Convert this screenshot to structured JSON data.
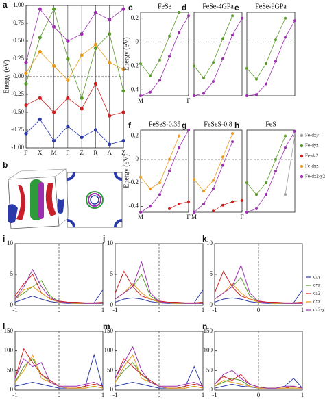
{
  "chart_data": [
    {
      "panel": "a",
      "type": "line",
      "ylabel": "Energy (eV)",
      "markers": true,
      "zero_line": "y",
      "xgrid": true,
      "categories": [
        "Γ",
        "X",
        "M",
        "Γ",
        "Z",
        "R",
        "A",
        "Z"
      ],
      "ylim": [
        -1,
        1
      ],
      "yticks": [
        {
          "value": -1,
          "label": "-1.00"
        },
        {
          "value": -0.75,
          "label": "-0.75"
        },
        {
          "value": -0.5,
          "label": "-0.50"
        },
        {
          "value": -0.25,
          "label": "-0.25"
        },
        {
          "value": 0,
          "label": "0.00"
        },
        {
          "value": 0.25,
          "label": "0.25"
        },
        {
          "value": 0.5,
          "label": "0.50"
        },
        {
          "value": 0.75,
          "label": "0.75"
        },
        {
          "value": 1,
          "label": "1.00"
        }
      ],
      "series": [
        {
          "color": "#5a9a2a",
          "values": [
            -0.1,
            0.55,
            0.95,
            0.25,
            -0.3,
            0.4,
            0.6,
            -0.2
          ]
        },
        {
          "color": "#cc1f1f",
          "values": [
            -0.4,
            -0.3,
            -0.5,
            -0.3,
            -0.45,
            -0.1,
            -0.55,
            -0.5
          ]
        },
        {
          "color": "#9b2fae",
          "values": [
            0.2,
            0.95,
            0.7,
            0.5,
            0.6,
            0.9,
            0.8,
            0.95
          ]
        },
        {
          "color": "#2b3aa8",
          "values": [
            -0.8,
            -0.6,
            -0.9,
            -0.7,
            -0.85,
            -0.75,
            -0.95,
            -0.9
          ]
        },
        {
          "color": "#e89a1a",
          "values": [
            0.05,
            0.35,
            0.15,
            -0.05,
            0.3,
            0.45,
            0.2,
            0.1
          ]
        }
      ]
    },
    {
      "panel": "b",
      "type": "fermi-surface"
    },
    {
      "panel": "c",
      "type": "line",
      "title": "FeSe",
      "ylabel": "Energy (eV)",
      "markers": true,
      "zero_line": "y",
      "x": [
        0,
        0.2,
        0.4,
        0.6,
        0.8,
        1
      ],
      "xlim": [
        0,
        1
      ],
      "xticks": [
        {
          "value": 0,
          "label": "M"
        },
        {
          "value": 1,
          "label": "Γ"
        }
      ],
      "ylim": [
        -0.45,
        0.25
      ],
      "yticks": [
        -0.4,
        -0.2,
        0,
        0.2
      ],
      "series": [
        {
          "color": "#5a9a2a",
          "values": [
            -0.18,
            -0.28,
            -0.15,
            0.05,
            0.25,
            null
          ]
        },
        {
          "color": "#9b2fae",
          "values": [
            -0.45,
            -0.42,
            -0.32,
            -0.12,
            0.08,
            0.22
          ]
        }
      ]
    },
    {
      "panel": "d",
      "type": "line",
      "title": "FeSe-4GPa",
      "markers": true,
      "zero_line": "y",
      "x": [
        0,
        0.2,
        0.4,
        0.6,
        0.8,
        1
      ],
      "xlim": [
        0,
        1
      ],
      "ylim": [
        -0.45,
        0.25
      ],
      "series": [
        {
          "color": "#5a9a2a",
          "values": [
            -0.2,
            -0.3,
            -0.17,
            0.03,
            0.22,
            null
          ]
        },
        {
          "color": "#9b2fae",
          "values": [
            -0.45,
            -0.43,
            -0.33,
            -0.14,
            0.06,
            0.2
          ]
        }
      ]
    },
    {
      "panel": "e",
      "type": "line",
      "title": "FeSe-9GPa",
      "markers": true,
      "zero_line": "y",
      "x": [
        0,
        0.2,
        0.4,
        0.6,
        0.8,
        1
      ],
      "xlim": [
        0,
        1
      ],
      "ylim": [
        -0.45,
        0.25
      ],
      "series": [
        {
          "color": "#5a9a2a",
          "values": [
            -0.22,
            -0.31,
            -0.18,
            0.02,
            0.2,
            null
          ]
        },
        {
          "color": "#9b2fae",
          "values": [
            -0.45,
            -0.44,
            -0.35,
            -0.16,
            0.04,
            0.18
          ]
        }
      ]
    },
    {
      "panel": "f",
      "type": "line",
      "title": "FeSeS-0.35",
      "ylabel": "Energy (eV)",
      "markers": true,
      "zero_line": "y",
      "x": [
        0,
        0.2,
        0.4,
        0.6,
        0.8,
        1
      ],
      "xlim": [
        0,
        1
      ],
      "xticks": [
        {
          "value": 0,
          "label": "M"
        },
        {
          "value": 1,
          "label": "Γ"
        }
      ],
      "ylim": [
        -0.45,
        0.25
      ],
      "yticks": [
        -0.4,
        -0.2,
        0,
        0.2
      ],
      "series": [
        {
          "color": "#e89a1a",
          "values": [
            -0.15,
            -0.25,
            -0.2,
            0.0,
            0.2,
            null
          ]
        },
        {
          "color": "#9b2fae",
          "values": [
            -0.45,
            -0.4,
            -0.3,
            -0.1,
            0.1,
            0.25
          ]
        },
        {
          "color": "#cc1f1f",
          "values": [
            null,
            null,
            null,
            -0.42,
            -0.38,
            -0.36
          ]
        }
      ]
    },
    {
      "panel": "g",
      "type": "line",
      "title": "FeSeS-0.8",
      "markers": true,
      "zero_line": "y",
      "x": [
        0,
        0.2,
        0.4,
        0.6,
        0.8,
        1
      ],
      "xlim": [
        0,
        1
      ],
      "xticks": [
        {
          "value": 0,
          "label": "M"
        },
        {
          "value": 1,
          "label": "Γ"
        }
      ],
      "ylim": [
        -0.45,
        0.25
      ],
      "series": [
        {
          "color": "#e89a1a",
          "values": [
            -0.17,
            -0.27,
            -0.18,
            0.02,
            0.22,
            null
          ]
        },
        {
          "color": "#9b2fae",
          "values": [
            -0.45,
            -0.38,
            -0.25,
            -0.05,
            0.15,
            null
          ]
        },
        {
          "color": "#cc1f1f",
          "values": [
            null,
            null,
            -0.44,
            -0.39,
            -0.36,
            -0.35
          ]
        }
      ]
    },
    {
      "panel": "h",
      "type": "line",
      "title": "FeS",
      "markers": true,
      "zero_line": "y",
      "legend": "right",
      "x": [
        0,
        0.2,
        0.4,
        0.6,
        0.8,
        1
      ],
      "xlim": [
        0,
        1
      ],
      "ylim": [
        -0.45,
        0.25
      ],
      "series": [
        {
          "name": "Fe-dxy",
          "color": "#9e9e9e",
          "values": [
            null,
            null,
            null,
            null,
            -0.3,
            0.2
          ]
        },
        {
          "name": "Fe-dyz",
          "color": "#5a9a2a",
          "values": [
            -0.2,
            -0.3,
            -0.2,
            0.0,
            0.2,
            null
          ]
        },
        {
          "name": "Fe-dz2",
          "color": "#cc1f1f",
          "values": [
            null,
            null,
            null,
            null,
            null,
            null
          ]
        },
        {
          "name": "Fe-dxz",
          "color": "#e89a1a",
          "values": [
            null,
            null,
            null,
            null,
            null,
            null
          ]
        },
        {
          "name": "Fe-dx2-y2",
          "color": "#9b2fae",
          "values": [
            -0.45,
            -0.42,
            -0.3,
            -0.1,
            0.1,
            0.24
          ]
        }
      ]
    },
    {
      "panel": "i",
      "type": "line",
      "zero_line": "x",
      "x": [
        -1,
        -0.8,
        -0.6,
        -0.4,
        -0.2,
        0,
        0.2,
        0.4,
        0.6,
        0.8,
        1
      ],
      "xlim": [
        -1,
        1
      ],
      "xticks": [
        -1,
        0,
        1
      ],
      "ylim": [
        0,
        10
      ],
      "yticks": [
        0,
        5,
        10
      ],
      "series": [
        {
          "color": "#2b3aa8",
          "values": [
            0.5,
            1,
            1.5,
            1,
            0.6,
            0.4,
            0.3,
            0.3,
            0.3,
            0.4,
            2.5
          ]
        },
        {
          "color": "#5a9a2a",
          "values": [
            1,
            2,
            3,
            4,
            1.5,
            0.6,
            0.4,
            0.3,
            0.3,
            0.3,
            0.3
          ]
        },
        {
          "color": "#cc1f1f",
          "values": [
            1.5,
            3.5,
            5,
            2,
            1,
            0.7,
            0.5,
            0.5,
            0.4,
            0.4,
            0.5
          ]
        },
        {
          "color": "#e89a1a",
          "values": [
            1,
            2.5,
            3,
            2,
            1,
            0.5,
            0.4,
            0.3,
            0.3,
            0.3,
            0.3
          ]
        },
        {
          "color": "#9b2fae",
          "values": [
            1,
            3,
            5.8,
            3,
            1.2,
            0.6,
            0.4,
            0.4,
            0.3,
            0.3,
            0.3
          ]
        }
      ]
    },
    {
      "panel": "j",
      "type": "line",
      "zero_line": "x",
      "x": [
        -1,
        -0.8,
        -0.6,
        -0.4,
        -0.2,
        0,
        0.2,
        0.4,
        0.6,
        0.8,
        1
      ],
      "xlim": [
        -1,
        1
      ],
      "xticks": [
        -1,
        0,
        1
      ],
      "ylim": [
        0,
        10
      ],
      "yticks": [
        0,
        5,
        10
      ],
      "series": [
        {
          "color": "#2b3aa8",
          "values": [
            0.5,
            1,
            1.2,
            1,
            0.6,
            0.4,
            0.3,
            0.3,
            0.3,
            0.4,
            2.5
          ]
        },
        {
          "color": "#5a9a2a",
          "values": [
            1,
            2,
            3,
            5,
            1.5,
            0.6,
            0.4,
            0.3,
            0.3,
            0.3,
            0.3
          ]
        },
        {
          "color": "#cc1f1f",
          "values": [
            2,
            5.5,
            3,
            1.5,
            1,
            0.7,
            0.5,
            0.5,
            0.4,
            0.4,
            0.5
          ]
        },
        {
          "color": "#e89a1a",
          "values": [
            1,
            2,
            3.5,
            2,
            1,
            0.5,
            0.4,
            0.3,
            0.3,
            0.3,
            0.3
          ]
        },
        {
          "color": "#9b2fae",
          "values": [
            1,
            2,
            3,
            7,
            2,
            0.6,
            0.4,
            0.4,
            0.3,
            0.3,
            0.3
          ]
        }
      ]
    },
    {
      "panel": "k",
      "type": "line",
      "zero_line": "x",
      "legend": "right",
      "x": [
        -1,
        -0.8,
        -0.6,
        -0.4,
        -0.2,
        0,
        0.2,
        0.4,
        0.6,
        0.8,
        1
      ],
      "xlim": [
        -1,
        1
      ],
      "xticks": [
        -1,
        0,
        1
      ],
      "ylim": [
        0,
        10
      ],
      "yticks": [
        0,
        5,
        10
      ],
      "series": [
        {
          "name": "dxy",
          "color": "#2b3aa8",
          "values": [
            0.5,
            1,
            1.2,
            1,
            0.6,
            0.4,
            0.3,
            0.3,
            0.3,
            0.4,
            2.5
          ]
        },
        {
          "name": "dyz",
          "color": "#5a9a2a",
          "values": [
            1,
            2,
            3,
            4.5,
            1.5,
            0.6,
            0.4,
            0.3,
            0.3,
            0.3,
            0.3
          ]
        },
        {
          "name": "dz2",
          "color": "#cc1f1f",
          "values": [
            2,
            5.5,
            3,
            1.5,
            1,
            0.7,
            0.5,
            0.5,
            0.4,
            0.4,
            0.5
          ]
        },
        {
          "name": "dxz",
          "color": "#e89a1a",
          "values": [
            1,
            2,
            3.5,
            2,
            1,
            0.5,
            0.4,
            0.3,
            0.3,
            0.3,
            0.3
          ]
        },
        {
          "name": "dx2-y2",
          "color": "#9b2fae",
          "values": [
            1,
            2,
            3,
            6.5,
            2,
            0.6,
            0.4,
            0.4,
            0.3,
            0.3,
            0.3
          ]
        }
      ]
    },
    {
      "panel": "l",
      "type": "line",
      "zero_line": "x",
      "x": [
        -1,
        -0.8,
        -0.6,
        -0.4,
        -0.2,
        0,
        0.2,
        0.4,
        0.6,
        0.8,
        1
      ],
      "xlim": [
        -1,
        1
      ],
      "xticks": [
        -1,
        0,
        1
      ],
      "ylim": [
        0,
        150
      ],
      "yticks": [
        0,
        50,
        100,
        150
      ],
      "series": [
        {
          "color": "#2b3aa8",
          "values": [
            10,
            15,
            20,
            15,
            10,
            5,
            5,
            5,
            10,
            90,
            5
          ]
        },
        {
          "color": "#5a9a2a",
          "values": [
            20,
            60,
            80,
            40,
            20,
            10,
            5,
            5,
            5,
            10,
            5
          ]
        },
        {
          "color": "#cc1f1f",
          "values": [
            30,
            105,
            70,
            40,
            25,
            10,
            5,
            5,
            10,
            15,
            10
          ]
        },
        {
          "color": "#e89a1a",
          "values": [
            20,
            50,
            90,
            30,
            20,
            10,
            5,
            5,
            5,
            10,
            5
          ]
        },
        {
          "color": "#9b2fae",
          "values": [
            30,
            80,
            60,
            70,
            20,
            10,
            10,
            10,
            15,
            20,
            10
          ]
        }
      ]
    },
    {
      "panel": "m",
      "type": "line",
      "zero_line": "x",
      "x": [
        -1,
        -0.8,
        -0.6,
        -0.4,
        -0.2,
        0,
        0.2,
        0.4,
        0.6,
        0.8,
        1
      ],
      "xlim": [
        -1,
        1
      ],
      "xticks": [
        -1,
        0,
        1
      ],
      "ylim": [
        0,
        150
      ],
      "yticks": [
        0,
        50,
        100,
        150
      ],
      "series": [
        {
          "color": "#2b3aa8",
          "values": [
            10,
            15,
            20,
            15,
            10,
            5,
            5,
            5,
            10,
            60,
            5
          ]
        },
        {
          "color": "#5a9a2a",
          "values": [
            20,
            50,
            70,
            40,
            20,
            10,
            5,
            5,
            5,
            10,
            5
          ]
        },
        {
          "color": "#cc1f1f",
          "values": [
            30,
            80,
            60,
            40,
            25,
            10,
            5,
            5,
            10,
            15,
            10
          ]
        },
        {
          "color": "#e89a1a",
          "values": [
            20,
            60,
            90,
            30,
            20,
            10,
            5,
            5,
            5,
            10,
            5
          ]
        },
        {
          "color": "#9b2fae",
          "values": [
            30,
            70,
            110,
            50,
            20,
            10,
            10,
            10,
            15,
            20,
            10
          ]
        }
      ]
    },
    {
      "panel": "n",
      "type": "line",
      "zero_line": "x",
      "x": [
        -1,
        -0.8,
        -0.6,
        -0.4,
        -0.2,
        0,
        0.2,
        0.4,
        0.6,
        0.8,
        1
      ],
      "xlim": [
        -1,
        1
      ],
      "xticks": [
        -1,
        0,
        1
      ],
      "ylim": [
        0,
        150
      ],
      "yticks": [
        0,
        50,
        100,
        150
      ],
      "series": [
        {
          "color": "#2b3aa8",
          "values": [
            5,
            10,
            15,
            10,
            8,
            5,
            5,
            5,
            10,
            30,
            5
          ]
        },
        {
          "color": "#5a9a2a",
          "values": [
            10,
            20,
            30,
            25,
            10,
            5,
            5,
            5,
            5,
            5,
            5
          ]
        },
        {
          "color": "#cc1f1f",
          "values": [
            15,
            35,
            25,
            40,
            15,
            8,
            5,
            5,
            5,
            10,
            5
          ]
        },
        {
          "color": "#e89a1a",
          "values": [
            10,
            25,
            20,
            15,
            10,
            5,
            5,
            5,
            5,
            5,
            5
          ]
        },
        {
          "color": "#9b2fae",
          "values": [
            15,
            40,
            50,
            30,
            15,
            8,
            5,
            5,
            10,
            10,
            5
          ]
        }
      ]
    }
  ]
}
